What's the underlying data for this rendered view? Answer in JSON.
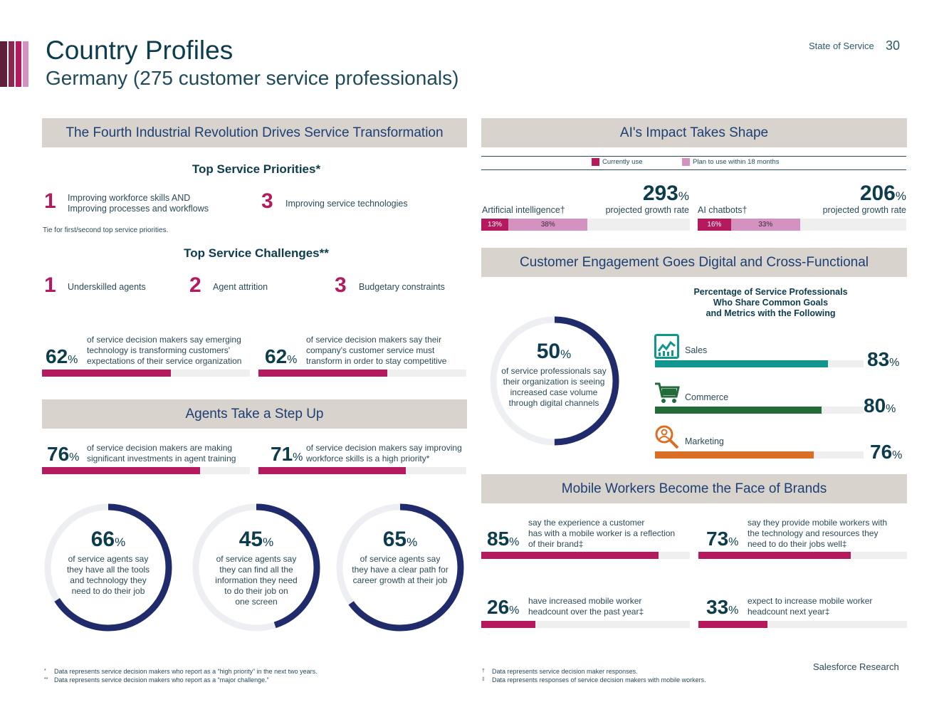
{
  "header": {
    "title": "Country Profiles",
    "subtitle": "Germany (275 customer service professionals)",
    "report": "State of Service",
    "page": "30"
  },
  "colors": {
    "crimson": "#b5195e",
    "navy": "#1f2b6b",
    "pink": "#d492c0",
    "teal": "#10968c",
    "green": "#246b3a",
    "orange": "#db6e25",
    "bar": "#d8d3cd"
  },
  "fourth": {
    "heading": "The Fourth Industrial Revolution Drives Service Transformation",
    "priorities_title": "Top Service Priorities*",
    "priorities": [
      {
        "rank": "1",
        "text1": "Improving workforce skills AND",
        "text2": "Improving processes and workflows"
      },
      {
        "rank": "3",
        "text1": "Improving service technologies",
        "text2": ""
      }
    ],
    "tie_note": "Tie for first/second top service priorities.",
    "challenges_title": "Top Service Challenges**",
    "challenges": [
      {
        "rank": "1",
        "text": "Underskilled agents"
      },
      {
        "rank": "2",
        "text": "Agent attrition"
      },
      {
        "rank": "3",
        "text": "Budgetary constraints"
      }
    ],
    "stats": [
      {
        "value": "62",
        "pct": "%",
        "fill": 0.62,
        "line1": "of service decision makers say emerging",
        "line2": "technology is transforming customers'",
        "line3": "expectations of their service organization"
      },
      {
        "value": "62",
        "pct": "%",
        "fill": 0.62,
        "line1": "of service decision makers say their",
        "line2": "company's customer service must",
        "line3": "transform in order to stay competitive"
      }
    ]
  },
  "agents": {
    "heading": "Agents Take a Step Up",
    "stats": [
      {
        "value": "76",
        "pct": "%",
        "fill": 0.76,
        "line1": "of service decision makers are making",
        "line2": "significant investments in agent training"
      },
      {
        "value": "71",
        "pct": "%",
        "fill": 0.71,
        "line1": "of service decision makers say improving",
        "line2": "workforce skills is a high priority*"
      }
    ],
    "rings": [
      {
        "value": "66",
        "pct": "%",
        "fill": 0.66,
        "desc": [
          "of service agents say",
          "they have all the tools",
          "and technology they",
          "need to do their job"
        ]
      },
      {
        "value": "45",
        "pct": "%",
        "fill": 0.45,
        "desc": [
          "of service agents say",
          "they can find all the",
          "information they need",
          "to do their job on",
          "one screen"
        ]
      },
      {
        "value": "65",
        "pct": "%",
        "fill": 0.65,
        "desc": [
          "of service agents say",
          "they have a clear path for",
          "career growth at their job"
        ]
      }
    ]
  },
  "ai": {
    "heading": "AI's Impact Takes Shape",
    "legend_current": "Currently use",
    "legend_plan": "Plan to use within 18 months",
    "items": [
      {
        "label": "Artificial intelligence†",
        "growth": "293",
        "pct": "%",
        "growth_label": "projected growth rate",
        "current": "13%",
        "plan": "38%",
        "current_val": 13,
        "plan_val": 38
      },
      {
        "label": "AI chatbots†",
        "growth": "206",
        "pct": "%",
        "growth_label": "projected growth rate",
        "current": "16%",
        "plan": "33%",
        "current_val": 16,
        "plan_val": 33
      }
    ]
  },
  "engagement": {
    "heading": "Customer Engagement Goes Digital and Cross-Functional",
    "ring": {
      "value": "50",
      "pct": "%",
      "fill": 0.5,
      "desc": [
        "of service professionals say",
        "their organization is seeing",
        "increased case volume",
        "through digital channels"
      ]
    },
    "share_title": [
      "Percentage of Service Professionals",
      "Who Share Common Goals",
      "and Metrics with the Following"
    ],
    "bars": [
      {
        "label": "Sales",
        "value": "83",
        "pct": "%",
        "fill": 0.83,
        "icon": "chart-icon",
        "color": "#10968c"
      },
      {
        "label": "Commerce",
        "value": "80",
        "pct": "%",
        "fill": 0.8,
        "icon": "cart-icon",
        "color": "#246b3a"
      },
      {
        "label": "Marketing",
        "value": "76",
        "pct": "%",
        "fill": 0.76,
        "icon": "magnifier-icon",
        "color": "#db6e25"
      }
    ]
  },
  "mobile": {
    "heading": "Mobile Workers Become the Face of Brands",
    "stats": [
      {
        "value": "85",
        "pct": "%",
        "fill": 0.85,
        "lines": [
          "say the experience a customer",
          "has with a mobile worker is a reflection",
          "of their brand‡"
        ]
      },
      {
        "value": "73",
        "pct": "%",
        "fill": 0.73,
        "lines": [
          "say they provide mobile workers with",
          "the technology and resources they",
          "need to do their jobs well‡"
        ]
      },
      {
        "value": "26",
        "pct": "%",
        "fill": 0.26,
        "lines": [
          "have increased mobile worker",
          "headcount over the past year‡"
        ]
      },
      {
        "value": "33",
        "pct": "%",
        "fill": 0.33,
        "lines": [
          "expect to increase mobile worker",
          "headcount next year‡"
        ]
      }
    ]
  },
  "footnotes": {
    "left": [
      {
        "mark": "*",
        "text": "Data represents service decision makers who report as a “high priority” in the next two years."
      },
      {
        "mark": "**",
        "text": "Data represents service decision makers who report as a “major challenge.”"
      }
    ],
    "right": [
      {
        "mark": "†",
        "text": "Data represents service decision maker responses."
      },
      {
        "mark": "‡",
        "text": "Data represents responses of service decision makers with mobile workers."
      }
    ],
    "brand": "Salesforce Research"
  }
}
